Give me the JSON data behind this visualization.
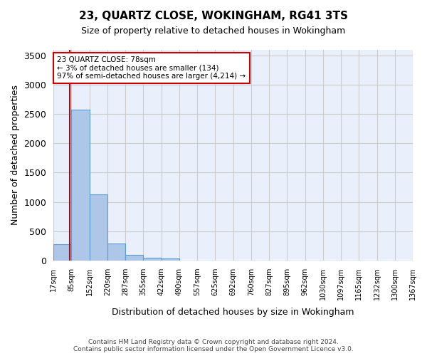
{
  "title": "23, QUARTZ CLOSE, WOKINGHAM, RG41 3TS",
  "subtitle": "Size of property relative to detached houses in Wokingham",
  "xlabel": "Distribution of detached houses by size in Wokingham",
  "ylabel": "Number of detached properties",
  "bar_color": "#aec6e8",
  "bar_edge_color": "#5a9fd4",
  "background_color": "#eaf0fb",
  "bin_labels": [
    "17sqm",
    "85sqm",
    "152sqm",
    "220sqm",
    "287sqm",
    "355sqm",
    "422sqm",
    "490sqm",
    "557sqm",
    "625sqm",
    "692sqm",
    "760sqm",
    "827sqm",
    "895sqm",
    "962sqm",
    "1030sqm",
    "1097sqm",
    "1165sqm",
    "1232sqm",
    "1300sqm",
    "1367sqm"
  ],
  "bar_values": [
    280,
    2580,
    1130,
    290,
    90,
    50,
    30,
    0,
    0,
    0,
    0,
    0,
    0,
    0,
    0,
    0,
    0,
    0,
    0,
    0
  ],
  "ylim": [
    0,
    3600
  ],
  "yticks": [
    0,
    500,
    1000,
    1500,
    2000,
    2500,
    3000,
    3500
  ],
  "property_label": "23 QUARTZ CLOSE: 78sqm",
  "annotation_line1": "← 3% of detached houses are smaller (134)",
  "annotation_line2": "97% of semi-detached houses are larger (4,214) →",
  "vline_color": "#cc0000",
  "annotation_box_color": "#cc0000",
  "footer_line1": "Contains HM Land Registry data © Crown copyright and database right 2024.",
  "footer_line2": "Contains public sector information licensed under the Open Government Licence v3.0.",
  "vline_pos": 0.897
}
